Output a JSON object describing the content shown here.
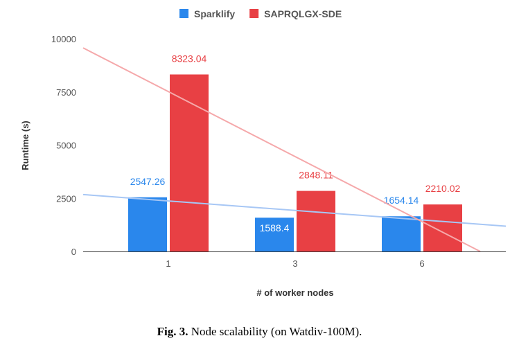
{
  "chart_data": {
    "type": "bar",
    "categories": [
      "1",
      "3",
      "6"
    ],
    "series": [
      {
        "name": "Sparklify",
        "values": [
          2547.26,
          1588.4,
          1654.14
        ],
        "color": "#2a87ec",
        "trend_color": "#a7c7f5"
      },
      {
        "name": "SAPRQLGX-SDE",
        "values": [
          8323.04,
          2848.11,
          2210.02
        ],
        "color": "#e84044",
        "trend_color": "#f5a8aa"
      }
    ],
    "data_labels": true,
    "trendlines": "linear",
    "xlabel": "# of worker nodes",
    "ylabel": "Runtime (s)",
    "ylim": [
      0,
      10000
    ],
    "yticks": [
      0,
      2500,
      5000,
      7500,
      10000
    ],
    "grid": false,
    "legend": "top"
  },
  "caption": {
    "prefix": "Fig. 3.",
    "text": " Node scalability (on Watdiv-100M)."
  }
}
